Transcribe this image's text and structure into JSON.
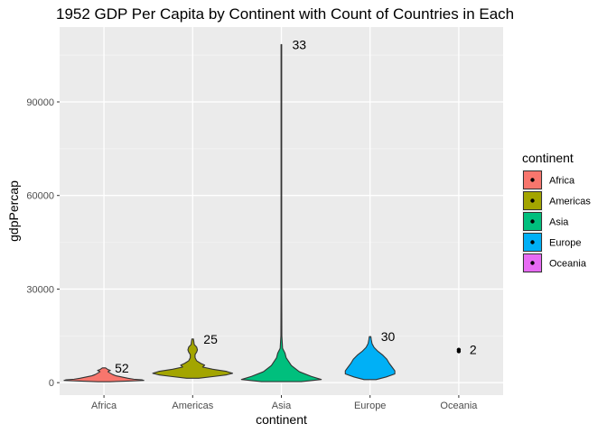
{
  "chart_data": {
    "type": "violin",
    "title": "1952 GDP Per Capita by Continent with Count of Countries in Each",
    "xlabel": "continent",
    "ylabel": "gdpPercap",
    "categories": [
      "Africa",
      "Americas",
      "Asia",
      "Europe",
      "Oceania"
    ],
    "yticks": [
      0,
      30000,
      60000,
      90000
    ],
    "ytick_labels": [
      "0",
      "30000",
      "60000",
      "90000"
    ],
    "ylim": [
      -4000,
      114000
    ],
    "grid": true,
    "legend": {
      "title": "continent",
      "position": "right",
      "entries": [
        "Africa",
        "Americas",
        "Asia",
        "Europe",
        "Oceania"
      ]
    },
    "colors": {
      "Africa": "#F8766D",
      "Americas": "#A3A500",
      "Asia": "#00BF7D",
      "Europe": "#00B0F6",
      "Oceania": "#E76BF3"
    },
    "series": [
      {
        "category": "Africa",
        "count": 52,
        "count_label": "52",
        "min": 298,
        "max": 4725,
        "profile": [
          [
            298,
            0.15
          ],
          [
            500,
            0.6
          ],
          [
            700,
            1.0
          ],
          [
            900,
            0.95
          ],
          [
            1100,
            0.75
          ],
          [
            1400,
            0.6
          ],
          [
            1800,
            0.45
          ],
          [
            2200,
            0.3
          ],
          [
            2600,
            0.22
          ],
          [
            3100,
            0.15
          ],
          [
            3500,
            0.1
          ],
          [
            3700,
            0.12
          ],
          [
            3900,
            0.16
          ],
          [
            4200,
            0.1
          ],
          [
            4725,
            0.04
          ]
        ]
      },
      {
        "category": "Americas",
        "count": 25,
        "count_label": "25",
        "min": 1398,
        "max": 13990,
        "profile": [
          [
            1398,
            0.15
          ],
          [
            2000,
            0.55
          ],
          [
            2500,
            0.85
          ],
          [
            3000,
            1.0
          ],
          [
            3600,
            0.85
          ],
          [
            4300,
            0.5
          ],
          [
            5000,
            0.25
          ],
          [
            5600,
            0.3
          ],
          [
            6200,
            0.2
          ],
          [
            7000,
            0.1
          ],
          [
            8000,
            0.06
          ],
          [
            9000,
            0.06
          ],
          [
            9800,
            0.1
          ],
          [
            10500,
            0.12
          ],
          [
            11400,
            0.1
          ],
          [
            12200,
            0.04
          ],
          [
            13100,
            0.03
          ],
          [
            13990,
            0.02
          ]
        ]
      },
      {
        "category": "Asia",
        "count": 33,
        "count_label": "33",
        "min": 331,
        "max": 108382,
        "profile": [
          [
            331,
            0.5
          ],
          [
            1000,
            1.0
          ],
          [
            2000,
            0.75
          ],
          [
            3500,
            0.45
          ],
          [
            5500,
            0.25
          ],
          [
            8000,
            0.12
          ],
          [
            9500,
            0.09
          ],
          [
            11000,
            0.03
          ],
          [
            15000,
            0.012
          ],
          [
            30000,
            0.008
          ],
          [
            60000,
            0.008
          ],
          [
            90000,
            0.008
          ],
          [
            108382,
            0.008
          ]
        ]
      },
      {
        "category": "Europe",
        "count": 30,
        "count_label": "30",
        "min": 973,
        "max": 14734,
        "profile": [
          [
            973,
            0.15
          ],
          [
            1800,
            0.4
          ],
          [
            2800,
            0.62
          ],
          [
            3800,
            0.62
          ],
          [
            5000,
            0.55
          ],
          [
            6200,
            0.48
          ],
          [
            7500,
            0.42
          ],
          [
            8800,
            0.32
          ],
          [
            10000,
            0.2
          ],
          [
            11300,
            0.1
          ],
          [
            12500,
            0.05
          ],
          [
            13800,
            0.03
          ],
          [
            14734,
            0.02
          ]
        ]
      },
      {
        "category": "Oceania",
        "count": 2,
        "count_label": "2",
        "min": 10040,
        "max": 10557,
        "profile": []
      }
    ]
  }
}
